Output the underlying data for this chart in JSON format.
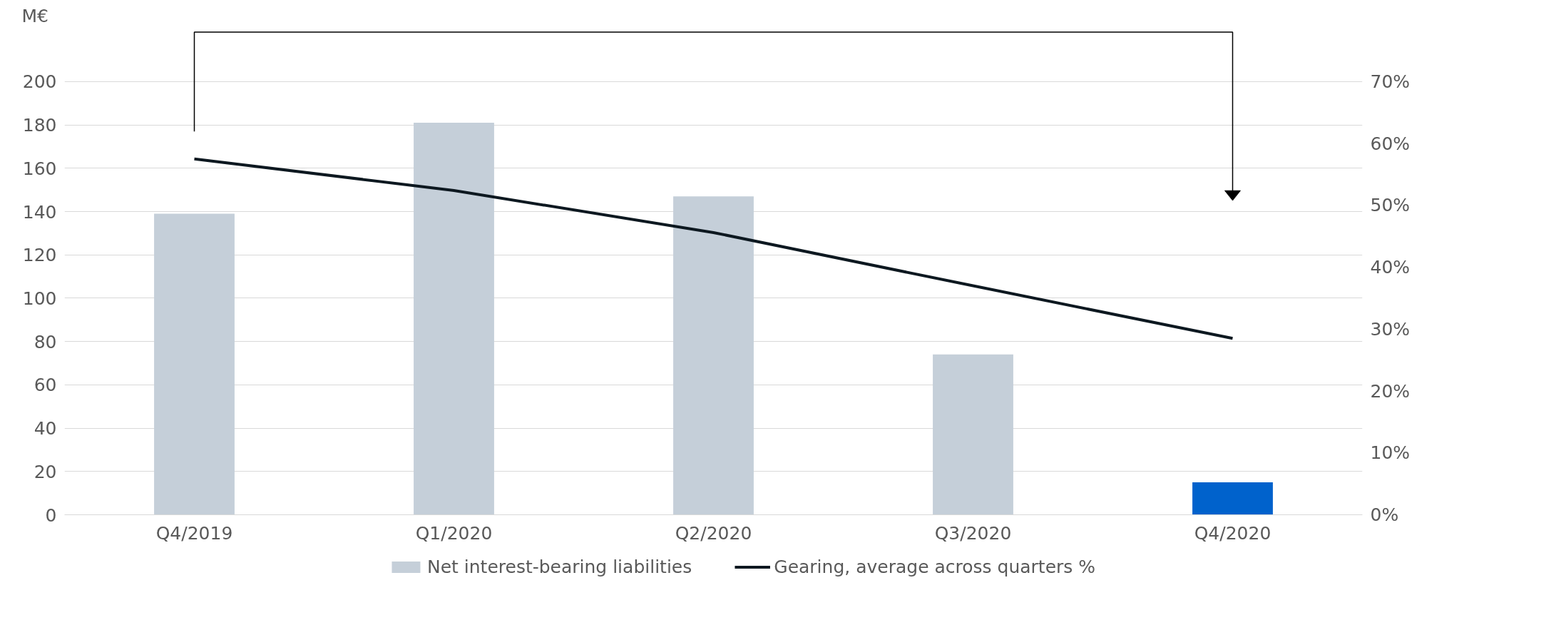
{
  "chart_data": {
    "type": "bar",
    "ylabel": "M€",
    "categories": [
      "Q4/2019",
      "Q1/2020",
      "Q2/2020",
      "Q3/2020",
      "Q4/2020"
    ],
    "series": [
      {
        "name": "Net interest-bearing liabilities",
        "colors": [
          "#c5cfd9",
          "#c5cfd9",
          "#c5cfd9",
          "#c5cfd9",
          "#0062cc"
        ],
        "color": "#c5cfd9",
        "values": [
          139,
          181,
          147,
          74,
          15
        ]
      },
      {
        "name": "Gearing, average across quarters %",
        "type": "line",
        "axis": "y2",
        "color": "#0d1820",
        "values": [
          57.5,
          52.4,
          45.6,
          37.0,
          28.5
        ]
      }
    ],
    "ylim": [
      0,
      224
    ],
    "yticks": [
      0,
      20,
      40,
      60,
      80,
      100,
      120,
      140,
      160,
      180,
      200
    ],
    "y2lim": [
      0,
      78.4
    ],
    "y2ticks": [
      {
        "value": 0,
        "label": "0%"
      },
      {
        "value": 10,
        "label": "10%"
      },
      {
        "value": 20,
        "label": "20%"
      },
      {
        "value": 30,
        "label": "30%"
      },
      {
        "value": 40,
        "label": "40%"
      },
      {
        "value": 50,
        "label": "50%"
      },
      {
        "value": 60,
        "label": "60%"
      },
      {
        "value": 70,
        "label": "70%"
      }
    ],
    "grid": "y",
    "legend": "bottom"
  }
}
